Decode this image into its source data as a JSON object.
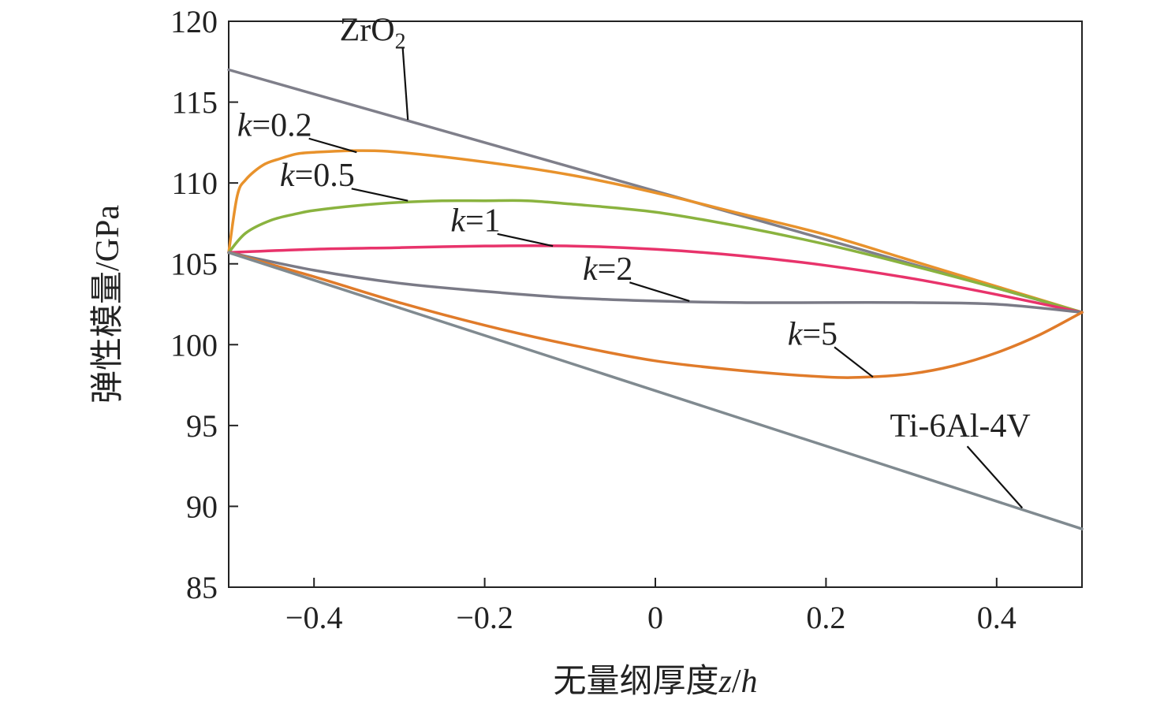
{
  "chart_data": {
    "type": "line",
    "title": "",
    "xlabel": "无量纲厚度z/h",
    "xlabel_parts": {
      "text": "无量纲厚度",
      "var1": "z",
      "sep": "/",
      "var2": "h"
    },
    "ylabel": "弹性模量/GPa",
    "xlim": [
      -0.5,
      0.5
    ],
    "ylim": [
      85,
      120
    ],
    "xticks": [
      -0.4,
      -0.2,
      0,
      0.2,
      0.4
    ],
    "xtick_labels": [
      "−0.4",
      "−0.2",
      "0",
      "0.2",
      "0.4"
    ],
    "yticks": [
      85,
      90,
      95,
      100,
      105,
      110,
      115,
      120
    ],
    "ytick_labels": [
      "85",
      "90",
      "95",
      "100",
      "105",
      "110",
      "115",
      "120"
    ],
    "grid": false,
    "legend": "none",
    "series": [
      {
        "name": "ZrO2",
        "label_parts": {
          "main": "ZrO",
          "sub": "2"
        },
        "color": "#7f7f8a",
        "x": [
          -0.5,
          0.5
        ],
        "y": [
          117.0,
          102.0
        ],
        "label_at": [
          -0.37,
          118.8
        ],
        "pointer_to": [
          -0.29,
          113.9
        ]
      },
      {
        "name": "k=0.2",
        "label_parts": {
          "var": "k",
          "rest": "=0.2"
        },
        "color": "#e8922c",
        "x": [
          -0.5,
          -0.49,
          -0.48,
          -0.46,
          -0.44,
          -0.42,
          -0.4,
          -0.35,
          -0.3,
          -0.2,
          -0.1,
          0,
          0.1,
          0.2,
          0.3,
          0.4,
          0.5
        ],
        "y": [
          105.7,
          109.2,
          110.2,
          111.1,
          111.5,
          111.8,
          111.9,
          112.0,
          111.9,
          111.3,
          110.5,
          109.4,
          108.1,
          106.8,
          105.2,
          103.6,
          102.0
        ],
        "label_at": [
          -0.49,
          112.9
        ],
        "pointer_to": [
          -0.35,
          111.9
        ]
      },
      {
        "name": "k=0.5",
        "label_parts": {
          "var": "k",
          "rest": "=0.5"
        },
        "color": "#8ab33f",
        "x": [
          -0.5,
          -0.48,
          -0.45,
          -0.42,
          -0.4,
          -0.35,
          -0.3,
          -0.25,
          -0.2,
          -0.15,
          -0.1,
          0,
          0.1,
          0.2,
          0.3,
          0.4,
          0.5
        ],
        "y": [
          105.7,
          106.9,
          107.7,
          108.1,
          108.3,
          108.6,
          108.8,
          108.9,
          108.9,
          108.9,
          108.7,
          108.2,
          107.3,
          106.2,
          104.9,
          103.5,
          102.0
        ],
        "label_at": [
          -0.44,
          109.8
        ],
        "pointer_to": [
          -0.29,
          108.9
        ]
      },
      {
        "name": "k=1",
        "label_parts": {
          "var": "k",
          "rest": "=1"
        },
        "color": "#e8336b",
        "x": [
          -0.5,
          -0.4,
          -0.3,
          -0.2,
          -0.1,
          0,
          0.1,
          0.2,
          0.3,
          0.4,
          0.5
        ],
        "y": [
          105.7,
          105.9,
          106.0,
          106.1,
          106.1,
          105.9,
          105.5,
          104.9,
          104.1,
          103.1,
          102.0
        ],
        "label_at": [
          -0.24,
          107.0
        ],
        "pointer_to": [
          -0.12,
          106.1
        ]
      },
      {
        "name": "k=2",
        "label_parts": {
          "var": "k",
          "rest": "=2"
        },
        "color": "#7a7a86",
        "x": [
          -0.5,
          -0.4,
          -0.3,
          -0.2,
          -0.1,
          0,
          0.1,
          0.2,
          0.3,
          0.4,
          0.5
        ],
        "y": [
          105.7,
          104.6,
          103.8,
          103.3,
          102.9,
          102.7,
          102.6,
          102.6,
          102.6,
          102.5,
          102.0
        ],
        "label_at": [
          -0.085,
          104.0
        ],
        "pointer_to": [
          0.04,
          102.7
        ]
      },
      {
        "name": "k=5",
        "label_parts": {
          "var": "k",
          "rest": "=5"
        },
        "color": "#e07b2a",
        "x": [
          -0.5,
          -0.4,
          -0.3,
          -0.2,
          -0.1,
          0,
          0.1,
          0.2,
          0.25,
          0.3,
          0.35,
          0.4,
          0.45,
          0.5
        ],
        "y": [
          105.7,
          104.2,
          102.6,
          101.2,
          100.0,
          99.0,
          98.4,
          98.0,
          98.0,
          98.2,
          98.7,
          99.5,
          100.6,
          102.0
        ],
        "label_at": [
          0.155,
          100.0
        ],
        "pointer_to": [
          0.255,
          98.0
        ]
      },
      {
        "name": "Ti-6Al-4V",
        "label_parts": {
          "main": "Ti-6Al-4V"
        },
        "color": "#808a90",
        "x": [
          -0.5,
          0.5
        ],
        "y": [
          105.7,
          88.6
        ],
        "label_at": [
          0.275,
          94.3
        ],
        "pointer_to": [
          0.43,
          89.9
        ]
      }
    ]
  }
}
